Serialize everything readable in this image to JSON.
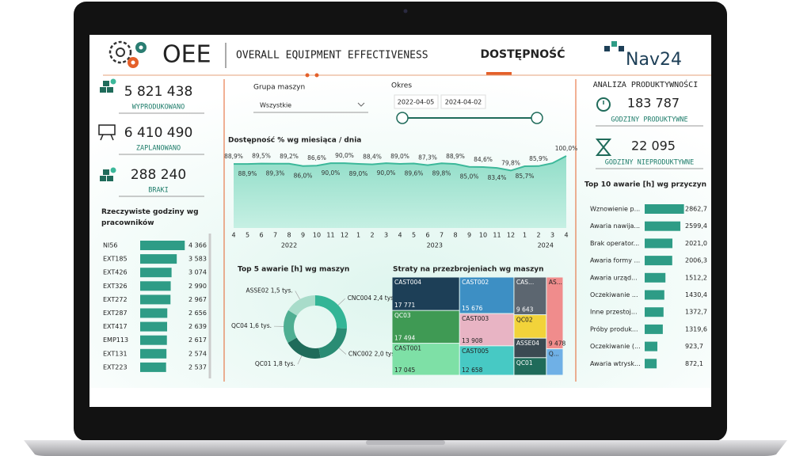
{
  "header": {
    "title": "OEE",
    "subtitle": "OVERALL EQUIPMENT EFFECTIVENESS",
    "tab": "DOSTĘPNOŚĆ",
    "logo": "Nav24"
  },
  "kpis": [
    {
      "value": "5 821 438",
      "label": "WYPRODUKOWANO"
    },
    {
      "value": "6 410 490",
      "label": "ZAPLANOWANO"
    },
    {
      "value": "288 240",
      "label": "BRAKI"
    }
  ],
  "filters": {
    "group_label": "Grupa maszyn",
    "group_value": "Wszystkie",
    "period_label": "Okres",
    "start": "2022-04-05",
    "end": "2024-04-02"
  },
  "productivity": {
    "title": "ANALIZA PRODUKTYWNOŚCI",
    "kpis": [
      {
        "value": "183 787",
        "label": "GODZINY PRODUKTYWNE"
      },
      {
        "value": "22 095",
        "label": "GODZINY NIEPRODUKTYWNE"
      }
    ]
  },
  "chart_data": [
    {
      "type": "hbar",
      "title": "Rzeczywiste godziny wg pracowników",
      "categories": [
        "NI56",
        "EXT185",
        "EXT426",
        "EXT326",
        "EXT272",
        "EXT287",
        "EXT417",
        "EMP113",
        "EXT131",
        "EXT223"
      ],
      "values": [
        4366,
        3583,
        3074,
        2990,
        2967,
        2656,
        2639,
        2617,
        2574,
        2537
      ],
      "value_labels": [
        "4 366",
        "3 583",
        "3 074",
        "2 990",
        "2 967",
        "2 656",
        "2 639",
        "2 617",
        "2 574",
        "2 537"
      ],
      "color": "#2e9c86",
      "xlim": [
        0,
        4500
      ]
    },
    {
      "type": "area",
      "title": "Dostępność % wg miesiąca / dnia",
      "categories": [
        "4",
        "5",
        "6",
        "7",
        "8",
        "9",
        "10",
        "11",
        "12",
        "1",
        "2",
        "3",
        "4",
        "5",
        "6",
        "7",
        "8",
        "9",
        "10",
        "11",
        "12",
        "1",
        "2",
        "3",
        "4"
      ],
      "year_labels": [
        "2022",
        "2023",
        "2024"
      ],
      "values": [
        88.9,
        88.9,
        89.5,
        89.3,
        89.2,
        86.0,
        86.6,
        90.0,
        90.0,
        89.0,
        88.4,
        90.0,
        89.0,
        89.6,
        87.3,
        89.8,
        88.9,
        85.0,
        84.6,
        83.4,
        79.8,
        85.7,
        85.9,
        90,
        100.0
      ],
      "value_labels": [
        "88,9%",
        "88,9%",
        "89,5%",
        "89,3%",
        "89,2%",
        "86,0%",
        "86,6%",
        "90,0%",
        "90,0%",
        "89,0%",
        "88,4%",
        "90,0%",
        "89,0%",
        "89,6%",
        "87,3%",
        "89,8%",
        "88,9%",
        "85,0%",
        "84,6%",
        "83,4%",
        "79,8%",
        "85,7%",
        "85,9%",
        null,
        "100,0%"
      ],
      "color": "#3cb89a",
      "ylim": [
        0,
        100
      ]
    },
    {
      "type": "donut",
      "title": "Top 5 awarie [h] wg maszyn",
      "categories": [
        "CNC004",
        "CNC002",
        "QC01",
        "QC04",
        "ASSE02"
      ],
      "values": [
        2400,
        2000,
        1800,
        1600,
        1500
      ],
      "value_labels": [
        "2,4 tys.",
        "2,0 tys.",
        "1,8 tys.",
        "1,6 tys.",
        "1,5 tys."
      ],
      "colors": [
        "#33b596",
        "#2a8c74",
        "#1f6b5a",
        "#4fae92",
        "#a8dcca"
      ]
    },
    {
      "type": "treemap",
      "title": "Straty na przezbrojeniach wg maszyn",
      "categories": [
        "CAST004",
        "QC03",
        "CAST001",
        "CAST002",
        "CAST003",
        "CAST005",
        "CAS...",
        "QC02",
        "ASSE04",
        "QC01",
        "AS...",
        "Q..."
      ],
      "values": [
        17771,
        17494,
        17045,
        15676,
        13908,
        12658,
        9643,
        6000,
        5000,
        4500,
        9478,
        3500
      ],
      "value_labels": [
        "17 771",
        "17 494",
        "17 045",
        "15 676",
        "13 908",
        "12 658",
        "9 643",
        null,
        null,
        null,
        "9 478",
        null
      ],
      "colors": [
        "#1d3f57",
        "#3f9a54",
        "#7ee0a6",
        "#3d8fc4",
        "#e8b4c4",
        "#47c9c4",
        "#5c6670",
        "#f2d33a",
        "#3b4a52",
        "#1f6b5a",
        "#f08c8c",
        "#6fb0e6"
      ]
    },
    {
      "type": "hbar",
      "title": "Top 10 awarie [h] wg przyczyn",
      "categories": [
        "Wznowienie p...",
        "Awaria nawija...",
        "Brak operator...",
        "Awaria formy ...",
        "Awaria urząd...",
        "Oczekiwanie ...",
        "Inne przestoj...",
        "Próby produk...",
        "Oczekiwanie (...",
        "Awaria wtrysk..."
      ],
      "values": [
        2862.7,
        2599.4,
        2021.0,
        2006.3,
        1512.2,
        1430.4,
        1372.7,
        1319.6,
        923.7,
        872.1
      ],
      "value_labels": [
        "2862,7",
        "2599,4",
        "2021,0",
        "2006,3",
        "1512,2",
        "1430,4",
        "1372,7",
        "1319,6",
        "923,7",
        "872,1"
      ],
      "color": "#2e9c86",
      "xlim": [
        0,
        3000
      ]
    }
  ]
}
